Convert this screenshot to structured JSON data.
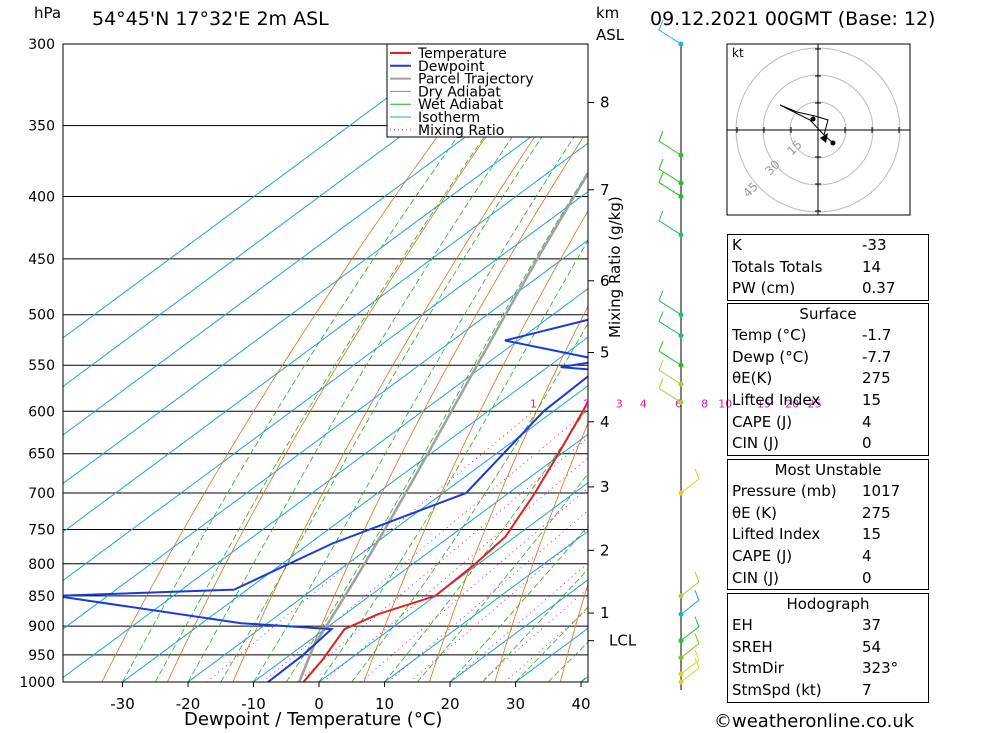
{
  "header": {
    "location": "54°45'N  17°32'E  2m  ASL",
    "datetime": "09.12.2021  00GMT  (Base: 12)"
  },
  "axis": {
    "pressure_unit": "hPa",
    "km": "km",
    "asl": "ASL",
    "xlabel": "Dewpoint / Temperature (°C)",
    "mixing_ratio_label": "Mixing Ratio (g/kg)",
    "lcl": "LCL"
  },
  "footer": "©weatheronline.co.uk",
  "colors": {
    "temperature": "#e02020",
    "dewpoint": "#1a3adc",
    "parcel": "#a0a0a0",
    "dry_adiabat": "#e07020",
    "wet_adiabat": "#20b020",
    "isotherm": "#20a0e0",
    "mixing_ratio": "#d020a0"
  },
  "chart_data": {
    "type": "line",
    "title": "Skew-T log-P",
    "pressure_levels": [
      300,
      350,
      400,
      450,
      500,
      550,
      600,
      650,
      700,
      750,
      800,
      850,
      900,
      950,
      1000
    ],
    "x_ticks": [
      -30,
      -20,
      -10,
      0,
      10,
      20,
      30,
      40
    ],
    "km_ticks": [
      {
        "km": "1",
        "p": 878
      },
      {
        "km": "2",
        "p": 780
      },
      {
        "km": "3",
        "p": 692
      },
      {
        "km": "4",
        "p": 612
      },
      {
        "km": "5",
        "p": 537
      },
      {
        "km": "6",
        "p": 469
      },
      {
        "km": "7",
        "p": 395
      },
      {
        "km": "8",
        "p": 335
      }
    ],
    "mixing_ratio_labels": [
      "1",
      "2",
      "3",
      "4",
      "6",
      "8",
      "10",
      "15",
      "20",
      "25"
    ],
    "legend": [
      "Temperature",
      "Dewpoint",
      "Parcel Trajectory",
      "Dry Adiabat",
      "Wet Adiabat",
      "Isotherm",
      "Mixing Ratio"
    ],
    "series": [
      {
        "name": "Temperature",
        "points": [
          [
            1017,
            -1.7
          ],
          [
            960,
            -4
          ],
          [
            905,
            -7
          ],
          [
            880,
            -5
          ],
          [
            850,
            0
          ],
          [
            800,
            -0.5
          ],
          [
            760,
            -1.5
          ],
          [
            700,
            -6
          ],
          [
            650,
            -10.5
          ],
          [
            600,
            -15.5
          ],
          [
            550,
            -21.5
          ],
          [
            500,
            -27
          ],
          [
            470,
            -30.5
          ],
          [
            440,
            -33.5
          ],
          [
            425,
            -33
          ],
          [
            400,
            -29.5
          ],
          [
            370,
            -32.5
          ],
          [
            330,
            -38
          ],
          [
            300,
            -42
          ]
        ]
      },
      {
        "name": "Dewpoint",
        "points": [
          [
            1017,
            -7.7
          ],
          [
            950,
            -8
          ],
          [
            905,
            -9
          ],
          [
            895,
            -24
          ],
          [
            850,
            -58
          ],
          [
            840,
            -32
          ],
          [
            770,
            -26.5
          ],
          [
            700,
            -16.5
          ],
          [
            600,
            -21.5
          ],
          [
            555,
            -22
          ],
          [
            552,
            -28
          ],
          [
            545,
            -23
          ],
          [
            525,
            -42
          ],
          [
            500,
            -31.5
          ],
          [
            480,
            -31.5
          ],
          [
            440,
            -39
          ],
          [
            420,
            -40
          ],
          [
            400,
            -40.5
          ],
          [
            385,
            -47
          ],
          [
            360,
            -60
          ],
          [
            320,
            -60
          ],
          [
            300,
            -63
          ]
        ]
      }
    ],
    "indices": {
      "rows": [
        [
          "K",
          "-33"
        ],
        [
          "Totals Totals",
          "14"
        ],
        [
          "PW (cm)",
          "0.37"
        ]
      ],
      "surface": {
        "title": "Surface",
        "rows": [
          [
            "Temp (°C)",
            "-1.7"
          ],
          [
            "Dewp (°C)",
            "-7.7"
          ],
          [
            "θE(K)",
            "275"
          ],
          [
            "Lifted Index",
            "15"
          ],
          [
            "CAPE (J)",
            "4"
          ],
          [
            "CIN (J)",
            "0"
          ]
        ]
      },
      "most_unstable": {
        "title": "Most Unstable",
        "rows": [
          [
            "Pressure (mb)",
            "1017"
          ],
          [
            "θE (K)",
            "275"
          ],
          [
            "Lifted Index",
            "15"
          ],
          [
            "CAPE (J)",
            "4"
          ],
          [
            "CIN (J)",
            "0"
          ]
        ]
      },
      "hodograph": {
        "title": "Hodograph",
        "rows": [
          [
            "EH",
            "37"
          ],
          [
            "SREH",
            "54"
          ],
          [
            "StmDir",
            "323°"
          ],
          [
            "StmSpd (kt)",
            "7"
          ]
        ]
      }
    },
    "hodo_labels": {
      "unit": "kt",
      "rings": [
        "15",
        "30",
        "45"
      ]
    }
  }
}
